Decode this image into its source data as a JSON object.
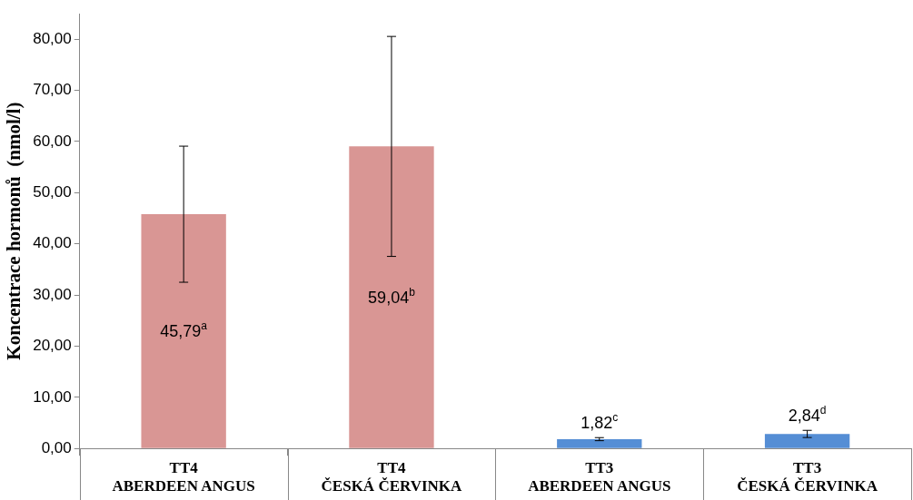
{
  "chart_data": {
    "type": "bar",
    "ylabel": "Koncentrace hormonů  (nmol/l)",
    "categories": [
      "TT4\nABERDEEN ANGUS",
      "TT4\nČESKÁ ČERVINKA",
      "TT3\nABERDEEN ANGUS",
      "TT3\nČESKÁ ČERVINKA"
    ],
    "values": [
      45.79,
      59.04,
      1.82,
      2.84
    ],
    "colors": [
      "#d99694",
      "#d99694",
      "#558ed5",
      "#558ed5"
    ],
    "errors": [
      13.3,
      21.5,
      0.3,
      0.7
    ],
    "value_labels": [
      "45,79$^{a}$",
      "59,04$^{b}$",
      "1,82$^{c}$",
      "2,84$^{d}$"
    ],
    "ylim": [
      0,
      85
    ],
    "yticks": [
      {
        "value": 0,
        "label": "0,00"
      },
      {
        "value": 10,
        "label": "10,00"
      },
      {
        "value": 20,
        "label": "20,00"
      },
      {
        "value": 30,
        "label": "30,00"
      },
      {
        "value": 40,
        "label": "40,00"
      },
      {
        "value": 50,
        "label": "50,00"
      },
      {
        "value": 60,
        "label": "60,00"
      },
      {
        "value": 70,
        "label": "70,00"
      },
      {
        "value": 80,
        "label": "80,00"
      }
    ],
    "grid": false,
    "legend": false
  }
}
